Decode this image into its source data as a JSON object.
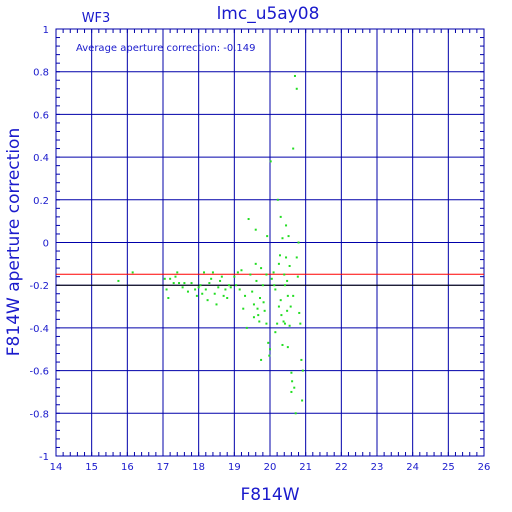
{
  "chart_data": {
    "type": "scatter",
    "title": "lmc_u5ay08",
    "subtitle": "WF3",
    "xlabel": "F814W",
    "ylabel": "F814W  aperture  correction",
    "annotation": "Average aperture correction: -0.149",
    "xlim": [
      14,
      26
    ],
    "ylim": [
      -1,
      1
    ],
    "x_ticks": [
      "14",
      "15",
      "16",
      "17",
      "18",
      "19",
      "20",
      "21",
      "22",
      "23",
      "24",
      "25",
      "26"
    ],
    "y_ticks": [
      "1",
      "0.8",
      "0.6",
      "0.4",
      "0.2",
      "0",
      "-0.2",
      "-0.4",
      "-0.6",
      "-0.8",
      "-1"
    ],
    "grid": true,
    "average_line": -0.149,
    "reference_line": -0.2,
    "colors": {
      "axes": "#0000aa",
      "text": "#1a1acc",
      "points": "#22dd22",
      "average_line": "#ff0000",
      "reference_line": "#000000"
    },
    "points": [
      [
        15.75,
        -0.18
      ],
      [
        16.15,
        -0.14
      ],
      [
        17.05,
        -0.17
      ],
      [
        17.1,
        -0.22
      ],
      [
        17.15,
        -0.26
      ],
      [
        17.2,
        -0.17
      ],
      [
        17.3,
        -0.19
      ],
      [
        17.35,
        -0.16
      ],
      [
        17.4,
        -0.14
      ],
      [
        17.45,
        -0.19
      ],
      [
        17.55,
        -0.21
      ],
      [
        17.6,
        -0.19
      ],
      [
        17.7,
        -0.23
      ],
      [
        17.8,
        -0.19
      ],
      [
        17.9,
        -0.22
      ],
      [
        17.95,
        -0.25
      ],
      [
        18.0,
        -0.21
      ],
      [
        18.05,
        -0.2
      ],
      [
        18.1,
        -0.24
      ],
      [
        18.15,
        -0.14
      ],
      [
        18.2,
        -0.22
      ],
      [
        18.25,
        -0.27
      ],
      [
        18.3,
        -0.19
      ],
      [
        18.35,
        -0.17
      ],
      [
        18.4,
        -0.14
      ],
      [
        18.45,
        -0.24
      ],
      [
        18.5,
        -0.29
      ],
      [
        18.55,
        -0.21
      ],
      [
        18.6,
        -0.18
      ],
      [
        18.65,
        -0.16
      ],
      [
        18.7,
        -0.25
      ],
      [
        18.75,
        -0.22
      ],
      [
        18.8,
        -0.26
      ],
      [
        18.85,
        -0.2
      ],
      [
        18.9,
        -0.21
      ],
      [
        19.0,
        -0.16
      ],
      [
        19.05,
        -0.2
      ],
      [
        19.1,
        -0.14
      ],
      [
        19.15,
        -0.22
      ],
      [
        19.2,
        -0.13
      ],
      [
        19.25,
        -0.31
      ],
      [
        19.3,
        -0.25
      ],
      [
        19.35,
        -0.4
      ],
      [
        19.4,
        0.11
      ],
      [
        19.45,
        -0.15
      ],
      [
        19.5,
        -0.23
      ],
      [
        19.55,
        -0.29
      ],
      [
        19.55,
        -0.35
      ],
      [
        19.6,
        0.06
      ],
      [
        19.6,
        -0.1
      ],
      [
        19.62,
        -0.18
      ],
      [
        19.65,
        -0.31
      ],
      [
        19.67,
        -0.34
      ],
      [
        19.7,
        -0.37
      ],
      [
        19.72,
        -0.26
      ],
      [
        19.75,
        -0.12
      ],
      [
        19.75,
        -0.55
      ],
      [
        19.8,
        -0.2
      ],
      [
        19.82,
        -0.28
      ],
      [
        19.85,
        -0.32
      ],
      [
        19.9,
        -0.15
      ],
      [
        19.9,
        -0.38
      ],
      [
        19.92,
        0.03
      ],
      [
        19.95,
        -0.47
      ],
      [
        19.98,
        -0.53
      ],
      [
        20.0,
        -0.5
      ],
      [
        20.02,
        0.38
      ],
      [
        20.05,
        -0.17
      ],
      [
        20.1,
        -0.14
      ],
      [
        20.12,
        -0.2
      ],
      [
        20.15,
        -0.22
      ],
      [
        20.15,
        -0.42
      ],
      [
        20.2,
        -0.38
      ],
      [
        20.22,
        0.2
      ],
      [
        20.25,
        -0.1
      ],
      [
        20.25,
        -0.3
      ],
      [
        20.28,
        -0.06
      ],
      [
        20.3,
        0.12
      ],
      [
        20.3,
        -0.27
      ],
      [
        20.32,
        -0.34
      ],
      [
        20.35,
        0.02
      ],
      [
        20.35,
        -0.48
      ],
      [
        20.38,
        -0.37
      ],
      [
        20.4,
        -0.15
      ],
      [
        20.42,
        -0.2
      ],
      [
        20.42,
        -0.38
      ],
      [
        20.45,
        0.08
      ],
      [
        20.45,
        -0.07
      ],
      [
        20.48,
        -0.18
      ],
      [
        20.48,
        -0.32
      ],
      [
        20.5,
        -0.25
      ],
      [
        20.5,
        -0.49
      ],
      [
        20.52,
        0.03
      ],
      [
        20.55,
        -0.11
      ],
      [
        20.55,
        -0.39
      ],
      [
        20.58,
        -0.3
      ],
      [
        20.6,
        -0.61
      ],
      [
        20.6,
        -0.7
      ],
      [
        20.62,
        -0.65
      ],
      [
        20.65,
        0.44
      ],
      [
        20.65,
        -0.25
      ],
      [
        20.68,
        -0.68
      ],
      [
        20.7,
        0.78
      ],
      [
        20.72,
        -0.8
      ],
      [
        20.75,
        0.72
      ],
      [
        20.75,
        -0.07
      ],
      [
        20.78,
        -0.16
      ],
      [
        20.8,
        0.0
      ],
      [
        20.82,
        -0.33
      ],
      [
        20.85,
        -0.38
      ],
      [
        20.88,
        -0.55
      ],
      [
        20.9,
        -0.74
      ],
      [
        20.92,
        -0.6
      ]
    ]
  }
}
